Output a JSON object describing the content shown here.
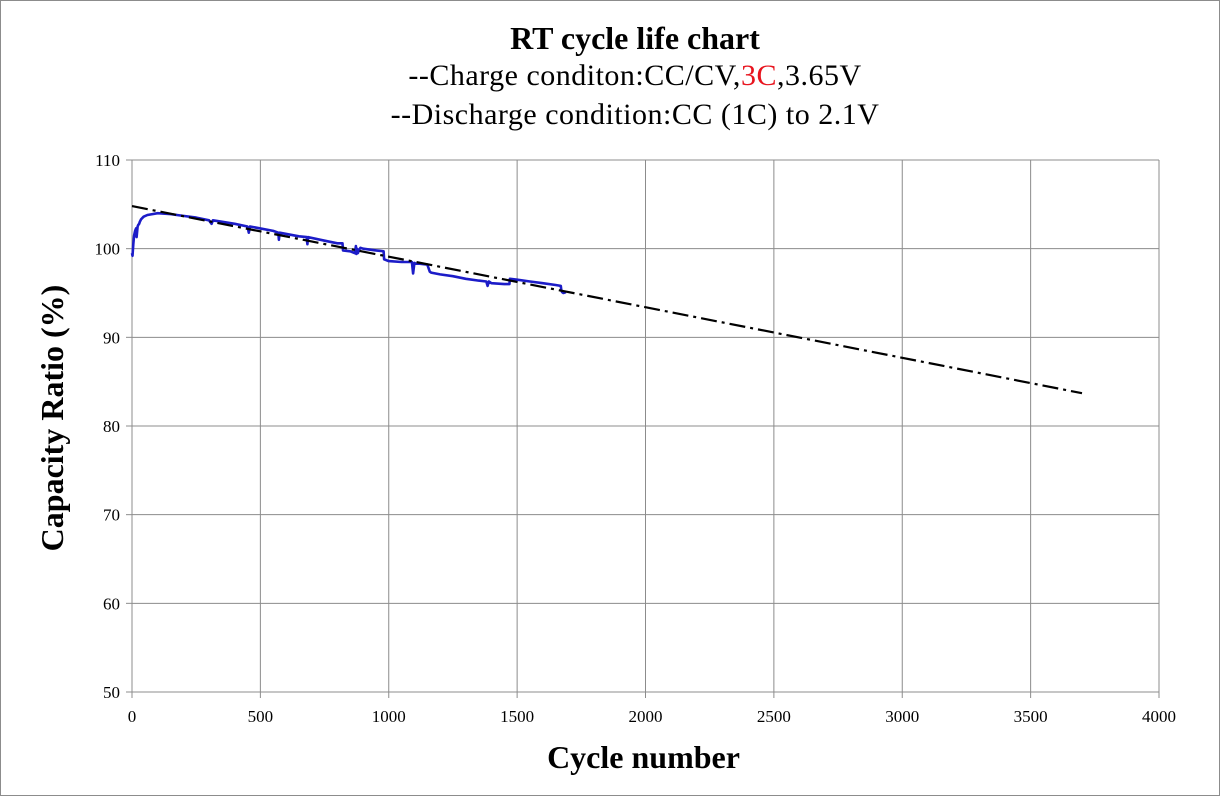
{
  "chart_data": {
    "type": "line",
    "title": "RT cycle life chart",
    "subtitle_lines": [
      {
        "parts": [
          {
            "text": "--Charge  conditon:CC/CV,",
            "color": "#000000"
          },
          {
            "text": "3C",
            "color": "#e8141e"
          },
          {
            "text": ",3.65V",
            "color": "#000000"
          }
        ]
      },
      {
        "parts": [
          {
            "text": "--Discharge  condition:CC  (1C) to 2.1V",
            "color": "#000000"
          }
        ]
      }
    ],
    "xlabel": "Cycle number",
    "ylabel": "Capacity Ratio (%)",
    "xlim": [
      0,
      4000
    ],
    "ylim": [
      50,
      110
    ],
    "x_ticks": [
      "0",
      "500",
      "1000",
      "1500",
      "2000",
      "2500",
      "3000",
      "3500",
      "4000"
    ],
    "y_ticks": [
      "50",
      "60",
      "70",
      "80",
      "90",
      "100",
      "110"
    ],
    "grid": true,
    "legend": "none",
    "series": [
      {
        "style": "solid",
        "color": "#1c1cc8",
        "x": [
          0,
          2,
          5,
          8,
          12,
          16,
          18,
          22,
          25,
          28,
          30,
          35,
          45,
          60,
          80,
          100,
          150,
          200,
          250,
          300,
          310,
          315,
          400,
          450,
          455,
          460,
          550,
          570,
          572,
          575,
          650,
          680,
          683,
          686,
          750,
          800,
          820,
          822,
          850,
          868,
          872,
          874,
          876,
          880,
          885,
          890,
          900,
          950,
          980,
          982,
          1000,
          1050,
          1090,
          1095,
          1100,
          1105,
          1120,
          1150,
          1160,
          1165,
          1200,
          1250,
          1300,
          1350,
          1380,
          1385,
          1390,
          1400,
          1450,
          1470,
          1472,
          1500,
          1550,
          1600,
          1650,
          1670,
          1672,
          1675,
          1680,
          1690
        ],
        "y": [
          99.5,
          99.2,
          100.5,
          101.5,
          102.0,
          102.3,
          101.3,
          102.5,
          102.7,
          102.8,
          103.0,
          103.3,
          103.6,
          103.8,
          103.9,
          104.0,
          103.9,
          103.7,
          103.5,
          103.2,
          102.8,
          103.2,
          102.8,
          102.5,
          101.8,
          102.5,
          102.0,
          101.8,
          101.0,
          101.8,
          101.4,
          101.3,
          100.5,
          101.3,
          100.9,
          100.6,
          100.6,
          99.8,
          99.7,
          99.5,
          100.3,
          99.4,
          100.0,
          99.5,
          99.9,
          100.1,
          100.0,
          99.8,
          99.7,
          98.8,
          98.6,
          98.5,
          98.5,
          97.2,
          98.4,
          98.3,
          98.3,
          98.2,
          97.4,
          97.3,
          97.1,
          96.9,
          96.6,
          96.4,
          96.3,
          95.8,
          96.3,
          96.1,
          96.0,
          96.0,
          96.6,
          96.5,
          96.3,
          96.1,
          95.9,
          95.8,
          95.3,
          95.1,
          95.0,
          95.1
        ]
      },
      {
        "style": "dash-dot",
        "color": "#000000",
        "x": [
          0,
          3700
        ],
        "y": [
          104.8,
          83.7
        ]
      }
    ]
  }
}
